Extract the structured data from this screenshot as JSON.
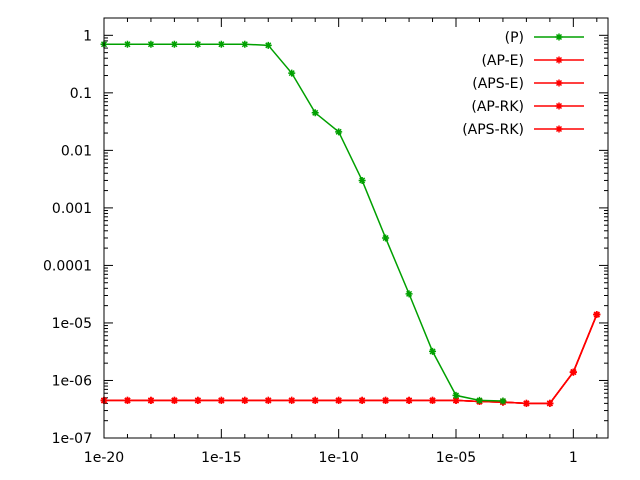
{
  "chart_data": {
    "type": "line",
    "x_scale": "log",
    "y_scale": "log",
    "xlim": [
      1e-20,
      30
    ],
    "ylim": [
      1e-07,
      2
    ],
    "x_ticks": [
      {
        "value": 1e-20,
        "label": "1e-20"
      },
      {
        "value": 1e-15,
        "label": "1e-15"
      },
      {
        "value": 1e-10,
        "label": "1e-10"
      },
      {
        "value": 1e-05,
        "label": "1e-05"
      },
      {
        "value": 1,
        "label": "1"
      }
    ],
    "y_ticks": [
      {
        "value": 1,
        "label": "1"
      },
      {
        "value": 0.1,
        "label": "0.1"
      },
      {
        "value": 0.01,
        "label": "0.01"
      },
      {
        "value": 0.001,
        "label": "0.001"
      },
      {
        "value": 0.0001,
        "label": "0.0001"
      },
      {
        "value": 1e-05,
        "label": "1e-05"
      },
      {
        "value": 1e-06,
        "label": "1e-06"
      },
      {
        "value": 1e-07,
        "label": "1e-07"
      }
    ],
    "legend_position": "top-right",
    "grid": false,
    "series": [
      {
        "name": "(P)",
        "color": "#00a000",
        "x": [
          1e-20,
          1e-19,
          1e-18,
          1e-17,
          1e-16,
          1e-15,
          1e-14,
          1e-13,
          1e-12,
          1e-11,
          1e-10,
          1e-09,
          1e-08,
          1e-07,
          1e-06,
          1e-05,
          0.0001,
          0.001
        ],
        "y": [
          0.7,
          0.7,
          0.7,
          0.7,
          0.7,
          0.7,
          0.7,
          0.67,
          0.22,
          0.045,
          0.021,
          0.003,
          0.0003,
          3.2e-05,
          3.2e-06,
          5.5e-07,
          4.5e-07,
          4.4e-07
        ]
      },
      {
        "name": "(AP-E)",
        "color": "#ff0000",
        "x": [
          1e-20,
          1e-19,
          1e-18,
          1e-17,
          1e-16,
          1e-15,
          1e-14,
          1e-13,
          1e-12,
          1e-11,
          1e-10,
          1e-09,
          1e-08,
          1e-07,
          1e-06,
          1e-05,
          0.0001,
          0.001,
          0.01,
          0.1,
          1,
          10
        ],
        "y": [
          4.5e-07,
          4.5e-07,
          4.5e-07,
          4.5e-07,
          4.5e-07,
          4.5e-07,
          4.5e-07,
          4.5e-07,
          4.5e-07,
          4.5e-07,
          4.5e-07,
          4.5e-07,
          4.5e-07,
          4.5e-07,
          4.5e-07,
          4.5e-07,
          4.3e-07,
          4.2e-07,
          4e-07,
          4e-07,
          1.4e-06,
          1.4e-05
        ]
      },
      {
        "name": "(APS-E)",
        "color": "#ff0000",
        "x": [
          1e-20,
          1e-19,
          1e-18,
          1e-17,
          1e-16,
          1e-15,
          1e-14,
          1e-13,
          1e-12,
          1e-11,
          1e-10,
          1e-09,
          1e-08,
          1e-07,
          1e-06,
          1e-05,
          0.0001,
          0.001,
          0.01,
          0.1,
          1,
          10
        ],
        "y": [
          4.5e-07,
          4.5e-07,
          4.5e-07,
          4.5e-07,
          4.5e-07,
          4.5e-07,
          4.5e-07,
          4.5e-07,
          4.5e-07,
          4.5e-07,
          4.5e-07,
          4.5e-07,
          4.5e-07,
          4.5e-07,
          4.5e-07,
          4.5e-07,
          4.3e-07,
          4.2e-07,
          4e-07,
          4e-07,
          1.4e-06,
          1.4e-05
        ]
      },
      {
        "name": "(AP-RK)",
        "color": "#ff0000",
        "x": [
          1e-20,
          1e-19,
          1e-18,
          1e-17,
          1e-16,
          1e-15,
          1e-14,
          1e-13,
          1e-12,
          1e-11,
          1e-10,
          1e-09,
          1e-08,
          1e-07,
          1e-06,
          1e-05,
          0.0001,
          0.001,
          0.01,
          0.1,
          1,
          10
        ],
        "y": [
          4.5e-07,
          4.5e-07,
          4.5e-07,
          4.5e-07,
          4.5e-07,
          4.5e-07,
          4.5e-07,
          4.5e-07,
          4.5e-07,
          4.5e-07,
          4.5e-07,
          4.5e-07,
          4.5e-07,
          4.5e-07,
          4.5e-07,
          4.5e-07,
          4.3e-07,
          4.2e-07,
          4e-07,
          4e-07,
          1.4e-06,
          1.4e-05
        ]
      },
      {
        "name": "(APS-RK)",
        "color": "#ff0000",
        "x": [
          1e-20,
          1e-19,
          1e-18,
          1e-17,
          1e-16,
          1e-15,
          1e-14,
          1e-13,
          1e-12,
          1e-11,
          1e-10,
          1e-09,
          1e-08,
          1e-07,
          1e-06,
          1e-05,
          0.0001,
          0.001,
          0.01,
          0.1,
          1,
          10
        ],
        "y": [
          4.5e-07,
          4.5e-07,
          4.5e-07,
          4.5e-07,
          4.5e-07,
          4.5e-07,
          4.5e-07,
          4.5e-07,
          4.5e-07,
          4.5e-07,
          4.5e-07,
          4.5e-07,
          4.5e-07,
          4.5e-07,
          4.5e-07,
          4.5e-07,
          4.3e-07,
          4.2e-07,
          4e-07,
          4e-07,
          1.4e-06,
          1.4e-05
        ]
      }
    ]
  }
}
